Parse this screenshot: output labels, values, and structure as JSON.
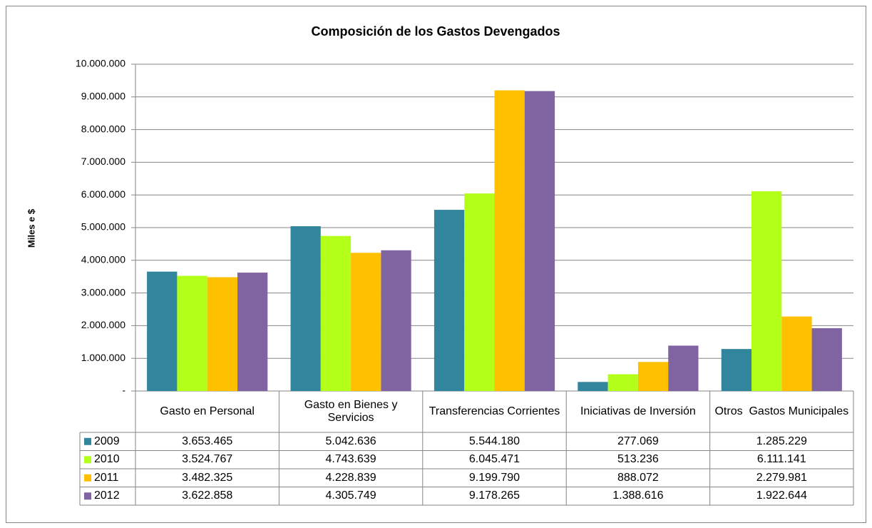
{
  "chart_data": {
    "type": "bar",
    "title": "Composición de los Gastos Devengados",
    "y_label": "Miles e $",
    "categories": [
      "Gasto en Personal",
      "Gasto en Bienes y Servicios",
      "Transferencias Corrientes",
      "Iniciativas de Inversión",
      "Otros  Gastos Municipales"
    ],
    "series": [
      {
        "name": "2009",
        "color": "#31859c",
        "values": [
          3653465,
          5042636,
          5544180,
          277069,
          1285229
        ],
        "value_labels": [
          "3.653.465",
          "5.042.636",
          "5.544.180",
          "277.069",
          "1.285.229"
        ]
      },
      {
        "name": "2010",
        "color": "#b3ff1a",
        "values": [
          3524767,
          4743639,
          6045471,
          513236,
          6111141
        ],
        "value_labels": [
          "3.524.767",
          "4.743.639",
          "6.045.471",
          "513.236",
          "6.111.141"
        ]
      },
      {
        "name": "2011",
        "color": "#ffc000",
        "values": [
          3482325,
          4228839,
          9199790,
          888072,
          2279981
        ],
        "value_labels": [
          "3.482.325",
          "4.228.839",
          "9.199.790",
          "888.072",
          "2.279.981"
        ]
      },
      {
        "name": "2012",
        "color": "#8064a2",
        "values": [
          3622858,
          4305749,
          9178265,
          1388616,
          1922644
        ],
        "value_labels": [
          "3.622.858",
          "4.305.749",
          "9.178.265",
          "1.388.616",
          "1.922.644"
        ]
      }
    ],
    "ylim": [
      0,
      10000000
    ],
    "yticks": [
      {
        "value": 0,
        "label": "-"
      },
      {
        "value": 1000000,
        "label": "1.000.000"
      },
      {
        "value": 2000000,
        "label": "2.000.000"
      },
      {
        "value": 3000000,
        "label": "3.000.000"
      },
      {
        "value": 4000000,
        "label": "4.000.000"
      },
      {
        "value": 5000000,
        "label": "5.000.000"
      },
      {
        "value": 6000000,
        "label": "6.000.000"
      },
      {
        "value": 7000000,
        "label": "7.000.000"
      },
      {
        "value": 8000000,
        "label": "8.000.000"
      },
      {
        "value": 9000000,
        "label": "9.000.000"
      },
      {
        "value": 10000000,
        "label": "10.000.000"
      }
    ],
    "grid": true
  }
}
